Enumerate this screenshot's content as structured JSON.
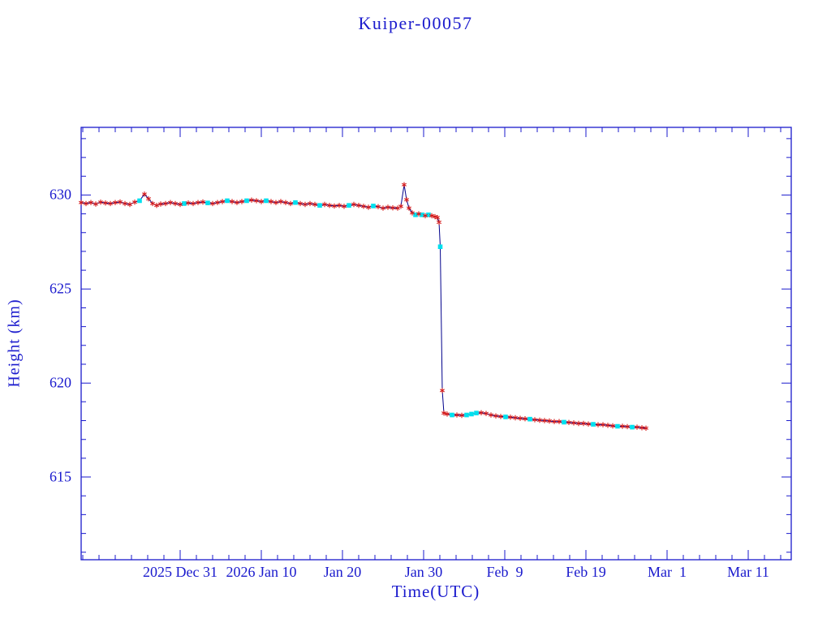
{
  "title": "Kuiper-00057",
  "colors": {
    "axis": "#1a1acd",
    "line": "#00008b",
    "red_marker": "#d41818",
    "cyan_marker": "#00e0ee",
    "background": "#ffffff"
  },
  "chart_data": {
    "type": "scatter",
    "title": "Kuiper-00057",
    "xlabel": "Time(UTC)",
    "ylabel": "Height (km)",
    "x_encoding": "days relative to the 2025 Dec 31 tick",
    "xlim": [
      -12.2,
      75.3
    ],
    "ylim": [
      610.6,
      633.6
    ],
    "grid": false,
    "legend": "none",
    "x_major_ticks": [
      {
        "day": 0,
        "label": "2025 Dec 31"
      },
      {
        "day": 10,
        "label": "2026 Jan 10"
      },
      {
        "day": 20,
        "label": "Jan 20"
      },
      {
        "day": 30,
        "label": "Jan 30"
      },
      {
        "day": 40,
        "label": "Feb  9"
      },
      {
        "day": 50,
        "label": "Feb 19"
      },
      {
        "day": 60,
        "label": "Mar  1"
      },
      {
        "day": 70,
        "label": "Mar 11"
      }
    ],
    "x_minor_step": 2,
    "y_major_ticks": [
      615,
      620,
      625,
      630
    ],
    "y_minor_step": 1,
    "marker_legend": {
      "r": "red asterisk sample",
      "c": "cyan square sample"
    },
    "points": [
      [
        -12.2,
        629.6,
        "r"
      ],
      [
        -11.6,
        629.55,
        "r"
      ],
      [
        -11.0,
        629.6,
        "r"
      ],
      [
        -10.4,
        629.52,
        "r"
      ],
      [
        -9.8,
        629.62,
        "r"
      ],
      [
        -9.2,
        629.58,
        "r"
      ],
      [
        -8.6,
        629.55,
        "r"
      ],
      [
        -8.0,
        629.6,
        "r"
      ],
      [
        -7.4,
        629.63,
        "r"
      ],
      [
        -6.8,
        629.55,
        "r"
      ],
      [
        -6.2,
        629.5,
        "r"
      ],
      [
        -5.6,
        629.62,
        "r"
      ],
      [
        -5.0,
        629.7,
        "c"
      ],
      [
        -4.4,
        630.05,
        "r"
      ],
      [
        -3.9,
        629.8,
        "r"
      ],
      [
        -3.4,
        629.55,
        "r"
      ],
      [
        -2.9,
        629.45,
        "r"
      ],
      [
        -2.4,
        629.52,
        "r"
      ],
      [
        -1.8,
        629.55,
        "r"
      ],
      [
        -1.2,
        629.6,
        "r"
      ],
      [
        -0.6,
        629.55,
        "r"
      ],
      [
        0.0,
        629.5,
        "r"
      ],
      [
        0.5,
        629.55,
        "c"
      ],
      [
        1.0,
        629.58,
        "r"
      ],
      [
        1.6,
        629.55,
        "r"
      ],
      [
        2.2,
        629.6,
        "r"
      ],
      [
        2.8,
        629.63,
        "r"
      ],
      [
        3.4,
        629.58,
        "c"
      ],
      [
        4.0,
        629.55,
        "r"
      ],
      [
        4.6,
        629.6,
        "r"
      ],
      [
        5.2,
        629.65,
        "r"
      ],
      [
        5.8,
        629.7,
        "c"
      ],
      [
        6.4,
        629.65,
        "r"
      ],
      [
        7.0,
        629.6,
        "r"
      ],
      [
        7.6,
        629.65,
        "r"
      ],
      [
        8.2,
        629.7,
        "c"
      ],
      [
        8.8,
        629.73,
        "r"
      ],
      [
        9.4,
        629.7,
        "r"
      ],
      [
        10.0,
        629.65,
        "r"
      ],
      [
        10.6,
        629.7,
        "c"
      ],
      [
        11.2,
        629.65,
        "r"
      ],
      [
        11.8,
        629.6,
        "r"
      ],
      [
        12.4,
        629.65,
        "r"
      ],
      [
        13.0,
        629.6,
        "r"
      ],
      [
        13.6,
        629.55,
        "r"
      ],
      [
        14.2,
        629.6,
        "c"
      ],
      [
        14.8,
        629.55,
        "r"
      ],
      [
        15.4,
        629.5,
        "r"
      ],
      [
        16.0,
        629.55,
        "r"
      ],
      [
        16.6,
        629.5,
        "r"
      ],
      [
        17.2,
        629.45,
        "c"
      ],
      [
        17.8,
        629.5,
        "r"
      ],
      [
        18.4,
        629.45,
        "r"
      ],
      [
        19.0,
        629.42,
        "r"
      ],
      [
        19.6,
        629.45,
        "r"
      ],
      [
        20.2,
        629.4,
        "r"
      ],
      [
        20.8,
        629.45,
        "c"
      ],
      [
        21.4,
        629.5,
        "r"
      ],
      [
        22.0,
        629.45,
        "r"
      ],
      [
        22.6,
        629.4,
        "r"
      ],
      [
        23.2,
        629.35,
        "r"
      ],
      [
        23.8,
        629.42,
        "c"
      ],
      [
        24.4,
        629.38,
        "r"
      ],
      [
        25.0,
        629.3,
        "r"
      ],
      [
        25.6,
        629.35,
        "r"
      ],
      [
        26.2,
        629.32,
        "r"
      ],
      [
        26.8,
        629.3,
        "r"
      ],
      [
        27.2,
        629.4,
        "r"
      ],
      [
        27.6,
        630.55,
        "r"
      ],
      [
        27.9,
        629.75,
        "r"
      ],
      [
        28.2,
        629.3,
        "r"
      ],
      [
        28.6,
        629.05,
        "r"
      ],
      [
        29.0,
        628.95,
        "c"
      ],
      [
        29.4,
        629.0,
        "r"
      ],
      [
        29.8,
        628.95,
        "c"
      ],
      [
        30.2,
        628.9,
        "r"
      ],
      [
        30.6,
        628.95,
        "c"
      ],
      [
        31.0,
        628.9,
        "r"
      ],
      [
        31.4,
        628.85,
        "r"
      ],
      [
        31.7,
        628.8,
        "r"
      ],
      [
        31.9,
        628.55,
        "r"
      ],
      [
        32.05,
        627.25,
        "c"
      ],
      [
        32.3,
        619.6,
        "r"
      ],
      [
        32.5,
        618.4,
        "r"
      ],
      [
        32.9,
        618.35,
        "r"
      ],
      [
        33.5,
        618.3,
        "c"
      ],
      [
        34.1,
        618.3,
        "r"
      ],
      [
        34.7,
        618.28,
        "r"
      ],
      [
        35.3,
        618.3,
        "c"
      ],
      [
        35.9,
        618.35,
        "c"
      ],
      [
        36.5,
        618.4,
        "c"
      ],
      [
        37.1,
        618.42,
        "r"
      ],
      [
        37.7,
        618.38,
        "r"
      ],
      [
        38.3,
        618.3,
        "r"
      ],
      [
        38.9,
        618.25,
        "r"
      ],
      [
        39.5,
        618.22,
        "r"
      ],
      [
        40.1,
        618.2,
        "c"
      ],
      [
        40.7,
        618.18,
        "r"
      ],
      [
        41.3,
        618.15,
        "r"
      ],
      [
        41.9,
        618.12,
        "r"
      ],
      [
        42.5,
        618.1,
        "r"
      ],
      [
        43.1,
        618.08,
        "c"
      ],
      [
        43.7,
        618.05,
        "r"
      ],
      [
        44.3,
        618.02,
        "r"
      ],
      [
        44.9,
        618.0,
        "r"
      ],
      [
        45.5,
        617.98,
        "r"
      ],
      [
        46.1,
        617.95,
        "r"
      ],
      [
        46.7,
        617.95,
        "r"
      ],
      [
        47.3,
        617.92,
        "c"
      ],
      [
        47.9,
        617.9,
        "r"
      ],
      [
        48.5,
        617.88,
        "r"
      ],
      [
        49.1,
        617.85,
        "r"
      ],
      [
        49.7,
        617.85,
        "r"
      ],
      [
        50.3,
        617.82,
        "r"
      ],
      [
        50.9,
        617.8,
        "c"
      ],
      [
        51.5,
        617.78,
        "r"
      ],
      [
        52.1,
        617.78,
        "r"
      ],
      [
        52.7,
        617.75,
        "r"
      ],
      [
        53.3,
        617.72,
        "r"
      ],
      [
        53.9,
        617.7,
        "c"
      ],
      [
        54.5,
        617.7,
        "r"
      ],
      [
        55.1,
        617.68,
        "r"
      ],
      [
        55.7,
        617.65,
        "c"
      ],
      [
        56.3,
        617.65,
        "r"
      ],
      [
        56.9,
        617.62,
        "r"
      ],
      [
        57.4,
        617.6,
        "r"
      ]
    ]
  }
}
